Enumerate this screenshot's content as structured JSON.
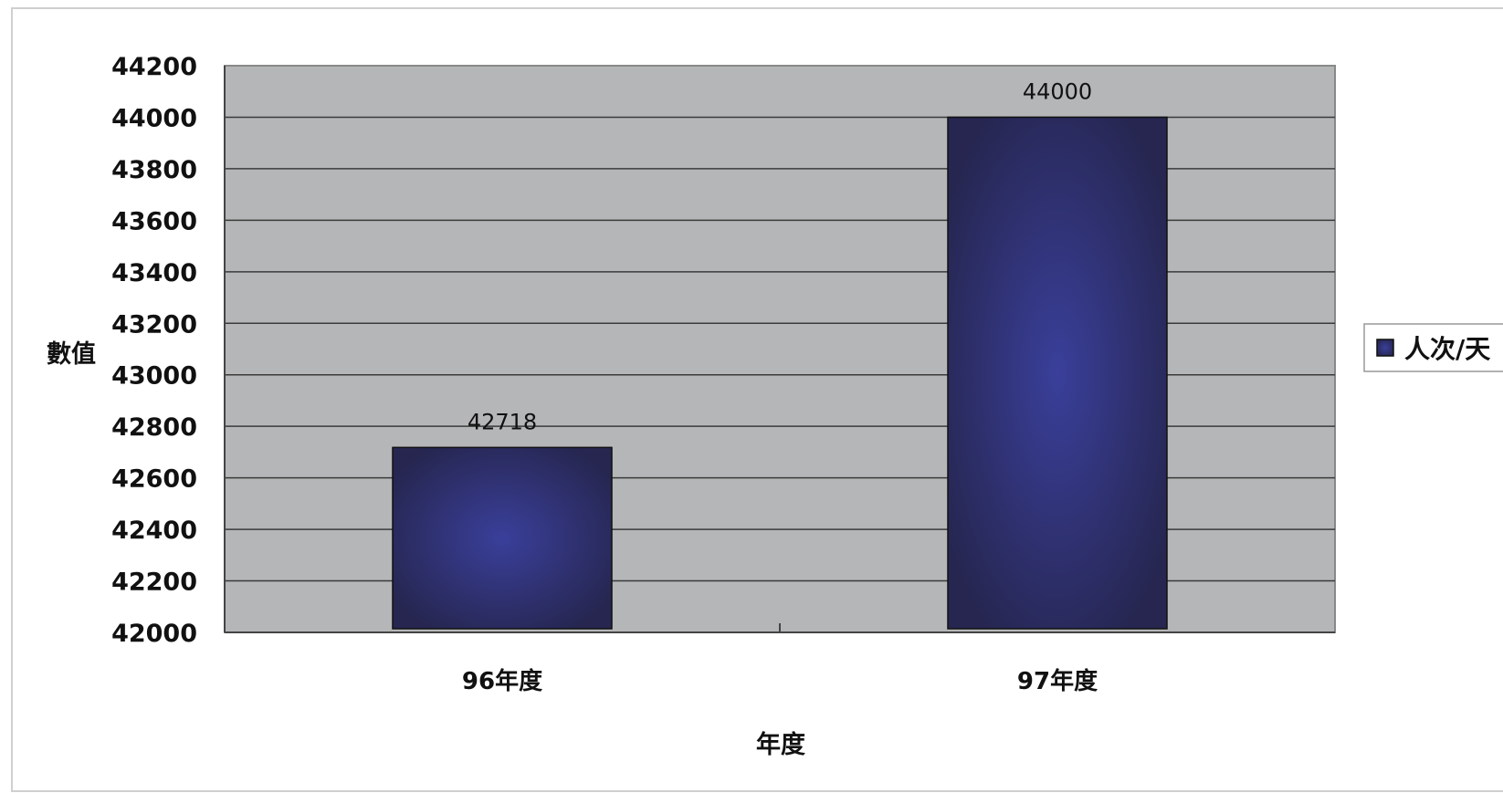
{
  "chart_data": {
    "type": "bar",
    "title": "",
    "categories": [
      "96年度",
      "97年度"
    ],
    "series": [
      {
        "name": "人次/天",
        "values": [
          42718,
          44000
        ]
      }
    ],
    "xlabel": "年度",
    "ylabel": "數值",
    "ylim": [
      42000,
      44200
    ],
    "ytick_step": 200,
    "grid": true,
    "legend": "right",
    "colors": {
      "bar_outer": "#262650",
      "bar_inner": "#3a3f9a",
      "plot_bg": "#b5b6b8",
      "grid": "#3a3a3a"
    }
  }
}
